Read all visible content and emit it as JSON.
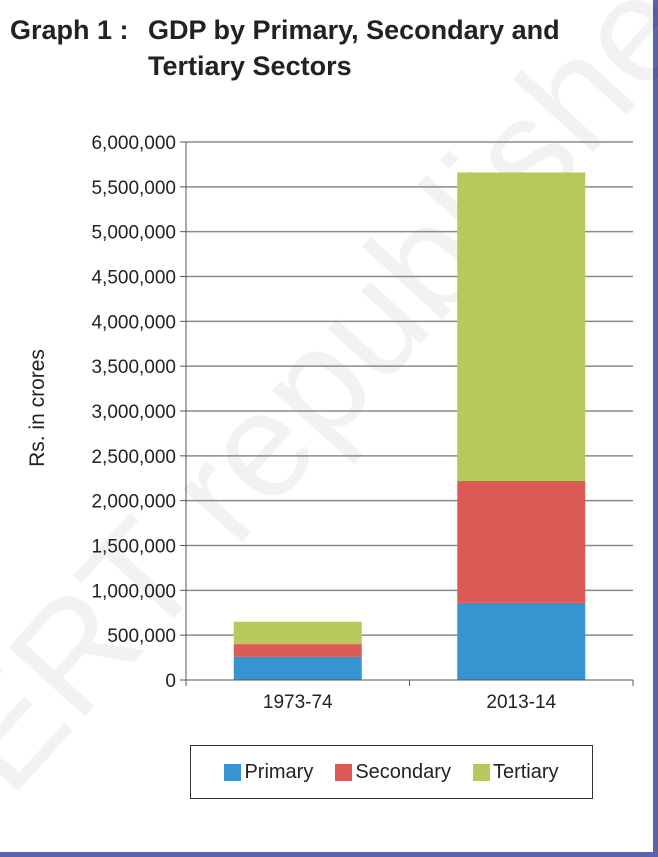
{
  "title": {
    "prefix": "Graph 1 :",
    "line1": "GDP by Primary, Secondary and",
    "line2": "Tertiary  Sectors"
  },
  "chart_data": {
    "type": "bar",
    "stacked": true,
    "categories": [
      "1973-74",
      "2013-14"
    ],
    "series": [
      {
        "name": "Primary",
        "color": "#3694d0",
        "values": [
          260000,
          860000
        ]
      },
      {
        "name": "Secondary",
        "color": "#dc5a55",
        "values": [
          140000,
          1360000
        ]
      },
      {
        "name": "Tertiary",
        "color": "#b7c95b",
        "values": [
          250000,
          3440000
        ]
      }
    ],
    "ylabel": "Rs. in crores",
    "xlabel": "",
    "ylim": [
      0,
      6000000
    ],
    "yticks": [
      0,
      500000,
      1000000,
      1500000,
      2000000,
      2500000,
      3000000,
      3500000,
      4000000,
      4500000,
      5000000,
      5500000,
      6000000
    ],
    "ytick_labels": [
      "0",
      "500,000",
      "1,000,000",
      "1,500,000",
      "2,000,000",
      "2,500,000",
      "3,000,000",
      "3,500,000",
      "4,000,000",
      "4,500,000",
      "5,000,000",
      "5,500,000",
      "6,000,000"
    ],
    "grid": true,
    "legend_position": "bottom"
  },
  "watermark": "ERT  republished"
}
